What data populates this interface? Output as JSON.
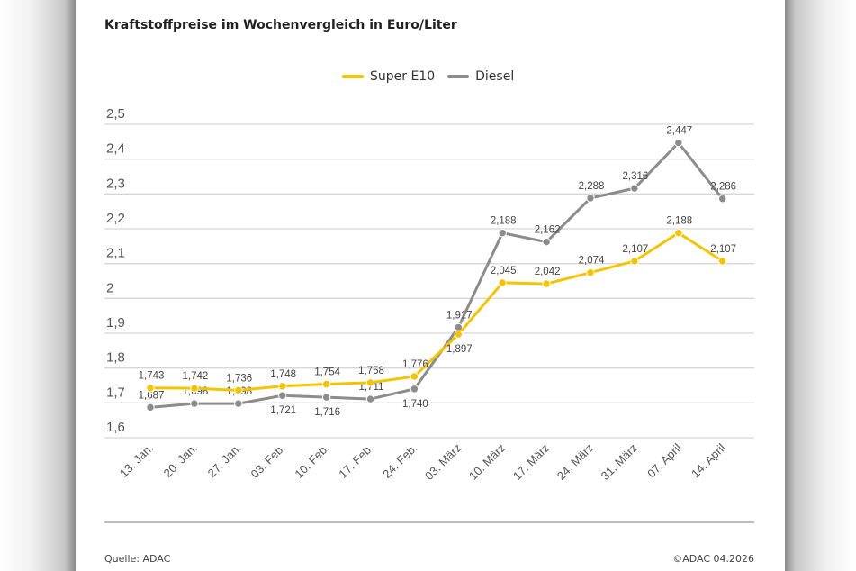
{
  "chart_data": {
    "type": "line",
    "title": "Kraftstoffpreise im Wochenvergleich in Euro/Liter",
    "categories": [
      "13. Jan.",
      "20. Jan.",
      "27. Jan.",
      "03. Feb.",
      "10. Feb.",
      "17. Feb.",
      "24. Feb.",
      "03. März",
      "10. März",
      "17. März",
      "24. März",
      "31. März",
      "07. April",
      "14. April"
    ],
    "series": [
      {
        "name": "Super E10",
        "color": "#f5c400",
        "values": [
          1.743,
          1.742,
          1.736,
          1.748,
          1.754,
          1.758,
          1.776,
          1.897,
          2.045,
          2.042,
          2.074,
          2.107,
          2.188,
          2.107
        ],
        "labels": [
          "1,743",
          "1,742",
          "1,736",
          "1,748",
          "1,754",
          "1,758",
          "1,776",
          "1,897",
          "2,045",
          "2,042",
          "2,074",
          "2,107",
          "2,188",
          "2,107"
        ]
      },
      {
        "name": "Diesel",
        "color": "#8c8c8c",
        "values": [
          1.687,
          1.698,
          1.698,
          1.721,
          1.716,
          1.711,
          1.74,
          1.917,
          2.188,
          2.162,
          2.288,
          2.316,
          2.447,
          2.286
        ],
        "labels": [
          "1,687",
          "1,698",
          "1,698",
          "1,721",
          "1,716",
          "1,711",
          "1,740",
          "1,917",
          "2,188",
          "2,162",
          "2,288",
          "2,316",
          "2,447",
          "2,286"
        ]
      }
    ],
    "yticks": [
      "1,6",
      "1,7",
      "1,8",
      "1,9",
      "2",
      "2,1",
      "2,2",
      "2,3",
      "2,4",
      "2,5"
    ],
    "ylim": [
      1.6,
      2.5
    ],
    "grid": true,
    "legend": "top-center"
  },
  "footer": {
    "source": "Quelle: ADAC",
    "copyright": "©ADAC 04.2026"
  }
}
